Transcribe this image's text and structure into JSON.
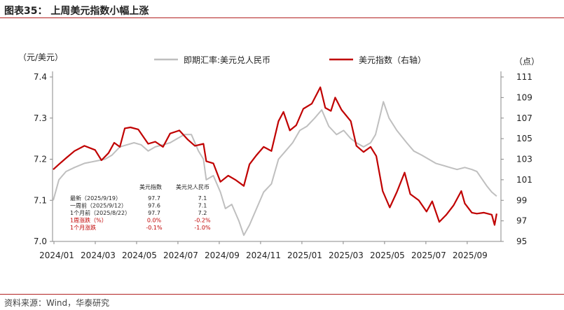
{
  "title": "图表35：  上周美元指数小幅上涨",
  "source": "资料来源：Wind，华泰研究",
  "chart_data": {
    "type": "line",
    "left_unit": "（元/美元）",
    "right_unit": "（点）",
    "x_ticks": [
      "2024/01",
      "2024/03",
      "2024/05",
      "2024/07",
      "2024/09",
      "2024/11",
      "2025/01",
      "2025/03",
      "2025/05",
      "2025/07",
      "2025/09"
    ],
    "x_range": [
      "2024-01-01",
      "2025-09-25"
    ],
    "left_axis": {
      "ylim": [
        7.0,
        7.4
      ],
      "ticks": [
        "7.0",
        "7.1",
        "7.2",
        "7.3",
        "7.4"
      ],
      "tick_values": [
        7.0,
        7.1,
        7.2,
        7.3,
        7.4
      ]
    },
    "right_axis": {
      "ylim": [
        95,
        111
      ],
      "ticks": [
        "95",
        "97",
        "99",
        "101",
        "103",
        "105",
        "107",
        "109",
        "111"
      ],
      "tick_values": [
        95,
        97,
        99,
        101,
        103,
        105,
        107,
        109,
        111
      ]
    },
    "series": [
      {
        "name": "即期汇率:美元兑人民币",
        "axis": "left",
        "color": "#bfbfbf",
        "points": [
          [
            "2024-01-02",
            7.1
          ],
          [
            "2024-01-10",
            7.15
          ],
          [
            "2024-01-20",
            7.17
          ],
          [
            "2024-02-01",
            7.18
          ],
          [
            "2024-02-15",
            7.19
          ],
          [
            "2024-03-01",
            7.195
          ],
          [
            "2024-03-15",
            7.2
          ],
          [
            "2024-03-25",
            7.21
          ],
          [
            "2024-04-05",
            7.23
          ],
          [
            "2024-04-15",
            7.235
          ],
          [
            "2024-04-25",
            7.24
          ],
          [
            "2024-05-05",
            7.235
          ],
          [
            "2024-05-15",
            7.22
          ],
          [
            "2024-05-25",
            7.23
          ],
          [
            "2024-06-05",
            7.235
          ],
          [
            "2024-06-15",
            7.24
          ],
          [
            "2024-06-25",
            7.25
          ],
          [
            "2024-07-05",
            7.26
          ],
          [
            "2024-07-15",
            7.26
          ],
          [
            "2024-07-25",
            7.22
          ],
          [
            "2024-08-01",
            7.2
          ],
          [
            "2024-08-05",
            7.15
          ],
          [
            "2024-08-15",
            7.16
          ],
          [
            "2024-08-25",
            7.12
          ],
          [
            "2024-09-01",
            7.08
          ],
          [
            "2024-09-10",
            7.09
          ],
          [
            "2024-09-20",
            7.05
          ],
          [
            "2024-09-27",
            7.015
          ],
          [
            "2024-10-05",
            7.04
          ],
          [
            "2024-10-15",
            7.08
          ],
          [
            "2024-10-25",
            7.12
          ],
          [
            "2024-11-05",
            7.14
          ],
          [
            "2024-11-15",
            7.2
          ],
          [
            "2024-11-25",
            7.22
          ],
          [
            "2024-12-05",
            7.24
          ],
          [
            "2024-12-15",
            7.27
          ],
          [
            "2024-12-25",
            7.28
          ],
          [
            "2025-01-05",
            7.3
          ],
          [
            "2025-01-15",
            7.32
          ],
          [
            "2025-01-25",
            7.28
          ],
          [
            "2025-02-05",
            7.26
          ],
          [
            "2025-02-15",
            7.27
          ],
          [
            "2025-02-25",
            7.25
          ],
          [
            "2025-03-05",
            7.24
          ],
          [
            "2025-03-15",
            7.23
          ],
          [
            "2025-03-25",
            7.24
          ],
          [
            "2025-04-01",
            7.26
          ],
          [
            "2025-04-08",
            7.31
          ],
          [
            "2025-04-12",
            7.34
          ],
          [
            "2025-04-20",
            7.3
          ],
          [
            "2025-05-01",
            7.27
          ],
          [
            "2025-05-15",
            7.24
          ],
          [
            "2025-05-25",
            7.22
          ],
          [
            "2025-06-05",
            7.21
          ],
          [
            "2025-06-15",
            7.2
          ],
          [
            "2025-06-25",
            7.19
          ],
          [
            "2025-07-05",
            7.185
          ],
          [
            "2025-07-15",
            7.18
          ],
          [
            "2025-07-25",
            7.175
          ],
          [
            "2025-08-05",
            7.18
          ],
          [
            "2025-08-15",
            7.175
          ],
          [
            "2025-08-22",
            7.17
          ],
          [
            "2025-09-05",
            7.135
          ],
          [
            "2025-09-12",
            7.12
          ],
          [
            "2025-09-19",
            7.11
          ]
        ]
      },
      {
        "name": "美元指数（右轴）",
        "axis": "right",
        "color": "#c00000",
        "points": [
          [
            "2024-01-02",
            102.0
          ],
          [
            "2024-01-10",
            102.5
          ],
          [
            "2024-01-20",
            103.1
          ],
          [
            "2024-02-01",
            103.8
          ],
          [
            "2024-02-15",
            104.3
          ],
          [
            "2024-03-01",
            103.9
          ],
          [
            "2024-03-10",
            102.9
          ],
          [
            "2024-03-20",
            103.6
          ],
          [
            "2024-03-28",
            104.6
          ],
          [
            "2024-04-05",
            104.2
          ],
          [
            "2024-04-12",
            106.0
          ],
          [
            "2024-04-20",
            106.1
          ],
          [
            "2024-05-01",
            105.9
          ],
          [
            "2024-05-15",
            104.5
          ],
          [
            "2024-05-25",
            104.7
          ],
          [
            "2024-06-05",
            104.2
          ],
          [
            "2024-06-15",
            105.5
          ],
          [
            "2024-06-28",
            105.8
          ],
          [
            "2024-07-10",
            104.9
          ],
          [
            "2024-07-20",
            104.3
          ],
          [
            "2024-08-01",
            104.5
          ],
          [
            "2024-08-05",
            102.8
          ],
          [
            "2024-08-15",
            102.6
          ],
          [
            "2024-08-25",
            100.8
          ],
          [
            "2024-09-05",
            101.4
          ],
          [
            "2024-09-15",
            101.0
          ],
          [
            "2024-09-27",
            100.4
          ],
          [
            "2024-10-05",
            102.5
          ],
          [
            "2024-10-15",
            103.4
          ],
          [
            "2024-10-25",
            104.2
          ],
          [
            "2024-11-05",
            103.8
          ],
          [
            "2024-11-15",
            106.7
          ],
          [
            "2024-11-22",
            107.6
          ],
          [
            "2024-12-01",
            105.8
          ],
          [
            "2024-12-10",
            106.3
          ],
          [
            "2024-12-20",
            107.9
          ],
          [
            "2025-01-01",
            108.4
          ],
          [
            "2025-01-13",
            110.0
          ],
          [
            "2025-01-20",
            108.0
          ],
          [
            "2025-01-28",
            107.7
          ],
          [
            "2025-02-03",
            109.0
          ],
          [
            "2025-02-12",
            107.8
          ],
          [
            "2025-02-25",
            106.7
          ],
          [
            "2025-03-05",
            104.3
          ],
          [
            "2025-03-15",
            103.7
          ],
          [
            "2025-03-25",
            104.2
          ],
          [
            "2025-04-02",
            103.3
          ],
          [
            "2025-04-11",
            99.9
          ],
          [
            "2025-04-21",
            98.3
          ],
          [
            "2025-05-01",
            99.8
          ],
          [
            "2025-05-12",
            101.7
          ],
          [
            "2025-05-20",
            99.6
          ],
          [
            "2025-06-01",
            99.0
          ],
          [
            "2025-06-12",
            97.9
          ],
          [
            "2025-06-20",
            98.9
          ],
          [
            "2025-06-30",
            96.9
          ],
          [
            "2025-07-10",
            97.6
          ],
          [
            "2025-07-20",
            98.5
          ],
          [
            "2025-07-31",
            99.9
          ],
          [
            "2025-08-05",
            98.7
          ],
          [
            "2025-08-15",
            97.8
          ],
          [
            "2025-08-22",
            97.7
          ],
          [
            "2025-09-01",
            97.8
          ],
          [
            "2025-09-12",
            97.6
          ],
          [
            "2025-09-16",
            96.6
          ],
          [
            "2025-09-19",
            97.7
          ]
        ]
      }
    ],
    "table": {
      "header": [
        "美元指数",
        "美元兑人民币"
      ],
      "rows": [
        {
          "label": "最新（2025/9/19）",
          "v1": "97.7",
          "v2": "7.1",
          "highlight": false
        },
        {
          "label": "一周前（2025/9/12）",
          "v1": "97.6",
          "v2": "7.1",
          "highlight": false
        },
        {
          "label": "1个月前（2025/8/22）",
          "v1": "97.7",
          "v2": "7.2",
          "highlight": false
        },
        {
          "label": "1周涨跌（%）",
          "v1": "0.0%",
          "v2": "-0.2%",
          "highlight": true
        },
        {
          "label": "1个月涨跌",
          "v1": "-0.1%",
          "v2": "-1.0%",
          "highlight": true
        }
      ]
    }
  }
}
